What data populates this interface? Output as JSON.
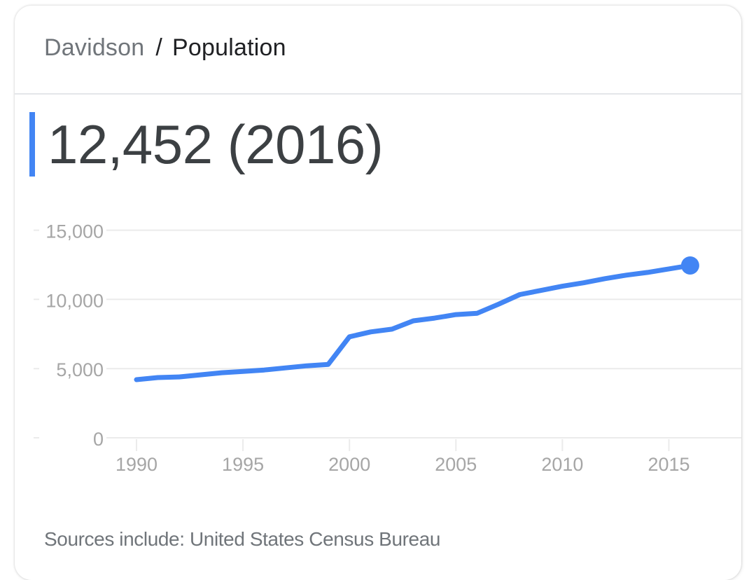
{
  "header": {
    "breadcrumb_parent": "Davidson",
    "breadcrumb_separator": "/",
    "breadcrumb_current": "Population"
  },
  "headline": {
    "value": "12,452 (2016)",
    "accent_color": "#4285f4"
  },
  "footer": {
    "source_text": "Sources include: United States Census Bureau"
  },
  "colors": {
    "line": "#4285f4",
    "gridline": "#ebebeb",
    "tick_label": "#a6a6a6",
    "text_primary": "#202124",
    "text_secondary": "#70757a"
  },
  "chart_data": {
    "type": "line",
    "title": "Davidson / Population",
    "xlabel": "",
    "ylabel": "",
    "x": [
      1990,
      1991,
      1992,
      1993,
      1994,
      1995,
      1996,
      1997,
      1998,
      1999,
      2000,
      2001,
      2002,
      2003,
      2004,
      2005,
      2006,
      2007,
      2008,
      2009,
      2010,
      2011,
      2012,
      2013,
      2014,
      2015,
      2016
    ],
    "series": [
      {
        "name": "Population",
        "values": [
          4200,
          4350,
          4400,
          4550,
          4700,
          4800,
          4900,
          5050,
          5200,
          5300,
          7300,
          7650,
          7850,
          8450,
          8650,
          8900,
          9000,
          9650,
          10350,
          10650,
          10950,
          11200,
          11500,
          11750,
          11950,
          12200,
          12452
        ]
      }
    ],
    "yticks": [
      0,
      5000,
      10000,
      15000
    ],
    "ytick_labels": [
      "0",
      "5,000",
      "10,000",
      "15,000"
    ],
    "xticks": [
      1990,
      1995,
      2000,
      2005,
      2010,
      2015
    ],
    "xtick_labels": [
      "1990",
      "1995",
      "2000",
      "2005",
      "2010",
      "2015"
    ],
    "ylim": [
      0,
      15000
    ],
    "xlim": [
      1990,
      2016
    ],
    "grid": true,
    "legend": "none",
    "highlight_point": {
      "x": 2016,
      "y": 12452
    }
  }
}
